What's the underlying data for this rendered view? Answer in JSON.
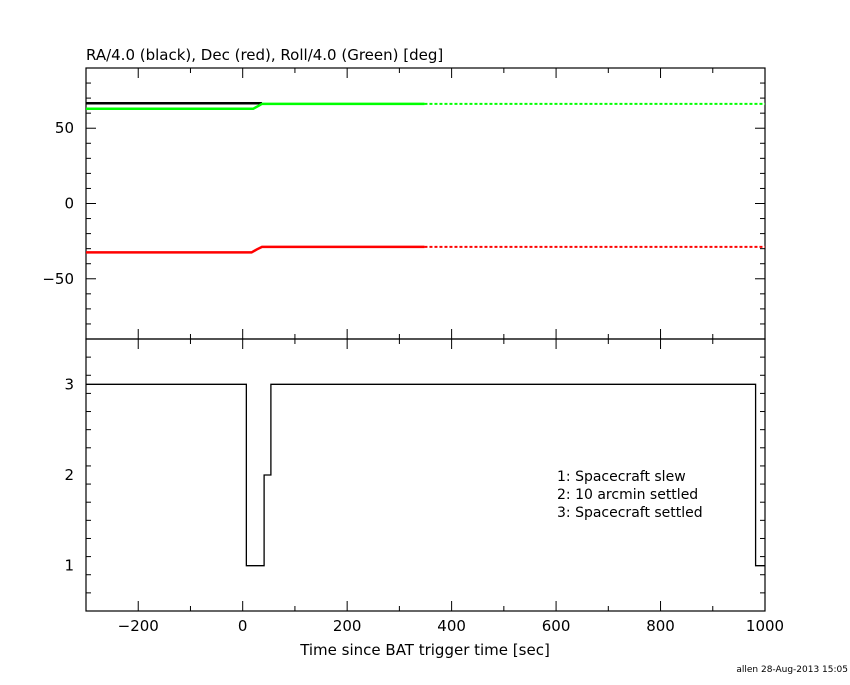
{
  "chart_data": [
    {
      "type": "line",
      "title": "RA/4.0 (black), Dec (red), Roll/4.0 (Green) [deg]",
      "xlim": [
        -300,
        1000
      ],
      "ylim": [
        -90,
        90
      ],
      "yticks": [
        -50,
        0,
        50
      ],
      "ytick_labels": [
        "−50",
        "0",
        "50"
      ],
      "grid": false,
      "colors": {
        "ra": "#000000",
        "dec": "#ff0000",
        "roll": "#00ff00"
      },
      "solid_until": 348,
      "series": [
        {
          "key": "ra",
          "color": "#000000",
          "x": [
            -300,
            37
          ],
          "y": [
            66.6,
            66.6
          ]
        },
        {
          "key": "dec",
          "color": "#ff0000",
          "x": [
            -300,
            17,
            27,
            37,
            1000
          ],
          "y": [
            -32.5,
            -32.5,
            -30.5,
            -28.8,
            -28.8
          ]
        },
        {
          "key": "roll",
          "color": "#00ff00",
          "x": [
            -300,
            20,
            30,
            37,
            1000
          ],
          "y": [
            62.9,
            62.9,
            64.8,
            66.2,
            66.2
          ]
        }
      ]
    },
    {
      "type": "line",
      "step": true,
      "xlabel": "Time since BAT trigger time [sec]",
      "xlim": [
        -300,
        1000
      ],
      "ylim": [
        0.5,
        3.5
      ],
      "xticks": [
        -200,
        0,
        200,
        400,
        600,
        800,
        1000
      ],
      "xtick_labels": [
        "−200",
        "0",
        "200",
        "400",
        "600",
        "800",
        "1000"
      ],
      "yticks": [
        1,
        2,
        3
      ],
      "ytick_labels": [
        "1",
        "2",
        "3"
      ],
      "grid": false,
      "series": [
        {
          "x": [
            -300,
            7,
            41,
            54,
            982,
            1000
          ],
          "y": [
            3,
            1,
            2,
            3,
            1,
            1
          ]
        }
      ],
      "legend": [
        "1: Spacecraft slew",
        "2: 10 arcmin settled",
        "3: Spacecraft settled"
      ]
    }
  ],
  "footer": "allen 28-Aug-2013 15:05"
}
